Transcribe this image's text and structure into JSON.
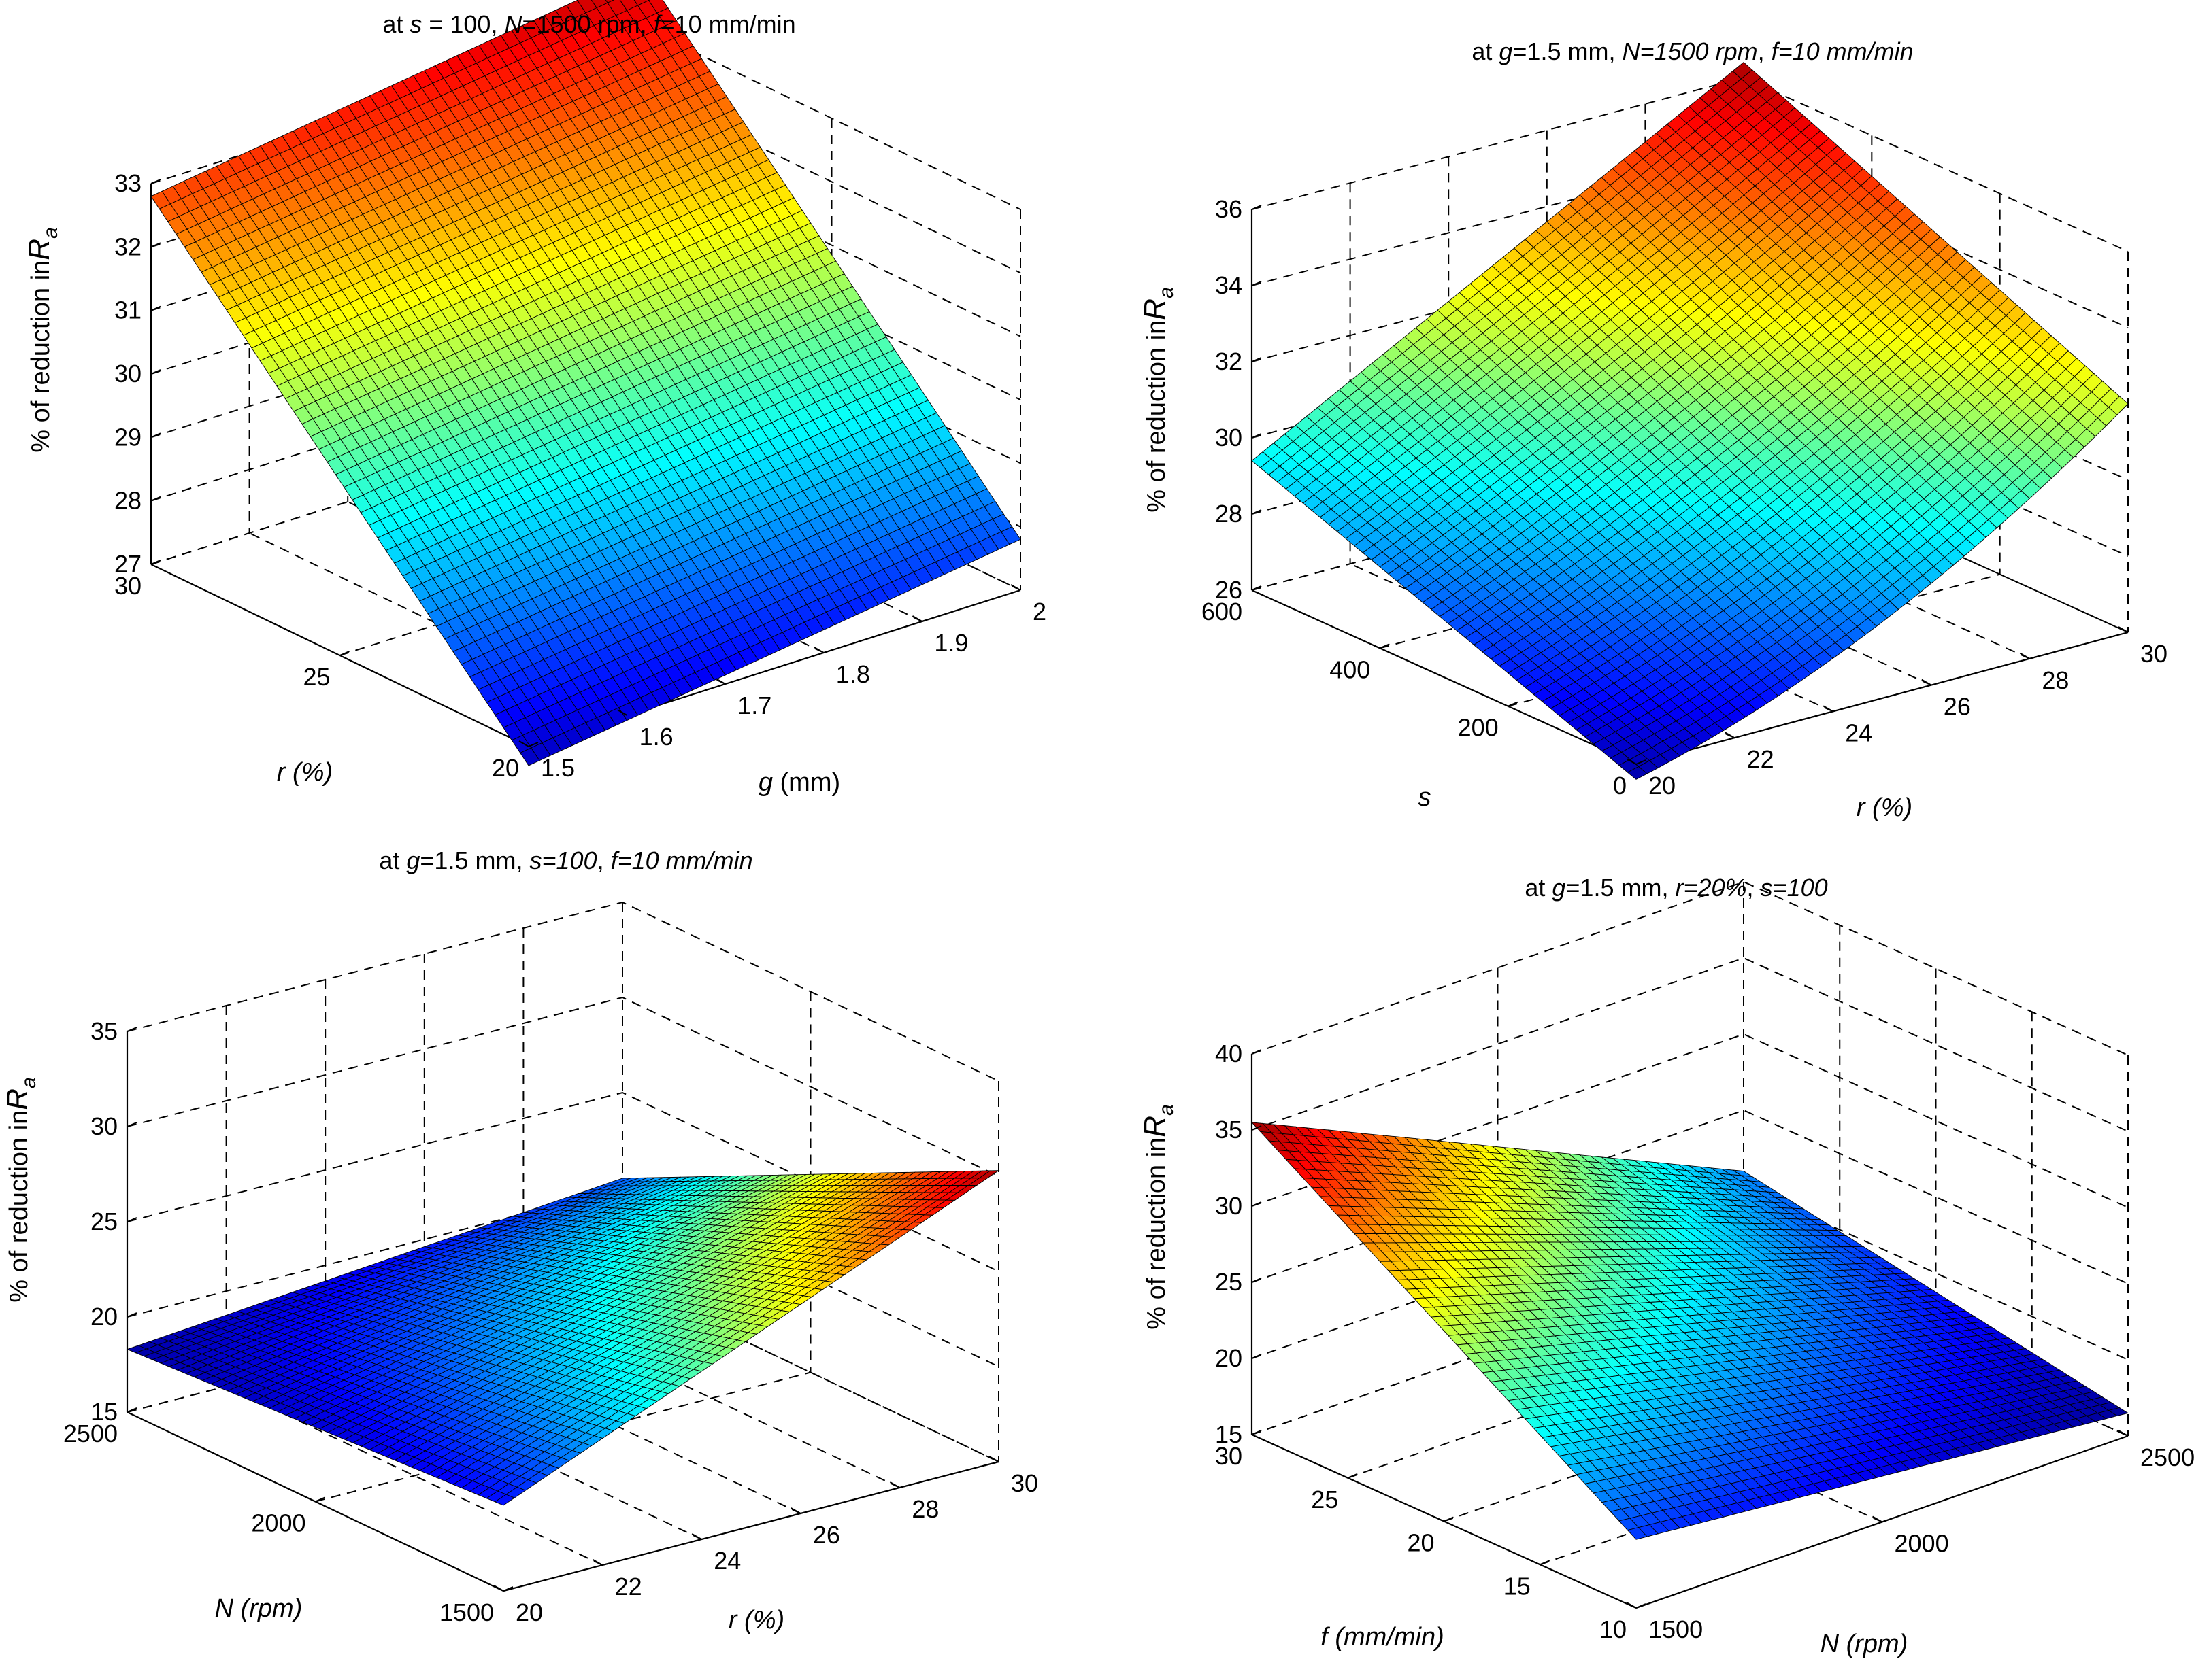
{
  "figure": {
    "background": "#ffffff",
    "line_color": "#000000",
    "mesh_color": "#000000"
  },
  "chart_data": [
    {
      "type": "surface",
      "title": [
        {
          "t": "at ",
          "i": false
        },
        {
          "t": "s",
          "i": true
        },
        {
          "t": " = 100, ",
          "i": false
        },
        {
          "t": "N",
          "i": true
        },
        {
          "t": "=1500 rpm, ",
          "i": false
        },
        {
          "t": "f",
          "i": true
        },
        {
          "t": "=10 mm/min",
          "i": false
        }
      ],
      "xlabel": [
        {
          "t": "r",
          "i": true
        },
        {
          "t": " (%)",
          "i": true
        }
      ],
      "ylabel": [
        {
          "t": "g",
          "i": true
        },
        {
          "t": " (mm)",
          "i": false
        }
      ],
      "zlabel": "% of reduction in",
      "zlabel_var": "R",
      "zlabel_sub": "a",
      "x_range": [
        20,
        30
      ],
      "y_range": [
        1.5,
        2.0
      ],
      "z_range": [
        27,
        33
      ],
      "x_ticks": [
        "30",
        "25",
        "20"
      ],
      "x_tick_values": [
        30,
        25,
        20
      ],
      "y_ticks": [
        "1.5",
        "1.6",
        "1.7",
        "1.8",
        "1.9",
        "2"
      ],
      "y_tick_values": [
        1.5,
        1.6,
        1.7,
        1.8,
        1.9,
        2.0
      ],
      "z_ticks": [
        "27",
        "28",
        "29",
        "30",
        "31",
        "32",
        "33"
      ],
      "z_tick_values": [
        27,
        28,
        29,
        30,
        31,
        32,
        33
      ],
      "grid": true,
      "corners": {
        "r20_g1.5": 26.7,
        "r20_g2": 27.8,
        "r30_g1.5": 32.8,
        "r30_g2": 33.9
      },
      "curvature": 0.0,
      "colormap": "jet"
    },
    {
      "type": "surface",
      "title": [
        {
          "t": "at ",
          "i": false
        },
        {
          "t": "g",
          "i": true
        },
        {
          "t": "=1.5 mm, ",
          "i": false
        },
        {
          "t": "N=1500 rpm",
          "i": true
        },
        {
          "t": ", ",
          "i": false
        },
        {
          "t": "f=10 mm/min",
          "i": true
        }
      ],
      "xlabel": [
        {
          "t": "s",
          "i": true
        }
      ],
      "ylabel": [
        {
          "t": "r (%)",
          "i": true
        }
      ],
      "zlabel": "% of reduction in",
      "zlabel_var": "R",
      "zlabel_sub": "a",
      "x_range": [
        0,
        600
      ],
      "y_range": [
        20,
        30
      ],
      "z_range": [
        26,
        36
      ],
      "x_ticks": [
        "600",
        "400",
        "200",
        "0"
      ],
      "x_tick_values": [
        600,
        400,
        200,
        0
      ],
      "y_ticks": [
        "20",
        "22",
        "24",
        "26",
        "28",
        "30"
      ],
      "y_tick_values": [
        20,
        22,
        24,
        26,
        28,
        30
      ],
      "z_ticks": [
        "26",
        "28",
        "30",
        "32",
        "34",
        "36"
      ],
      "z_tick_values": [
        26,
        28,
        30,
        32,
        34,
        36
      ],
      "grid": true,
      "corners": {
        "s0_r20": 25.6,
        "s0_r30": 32.0,
        "s600_r20": 29.4,
        "s600_r30": 36.4
      },
      "curvature": -0.8,
      "colormap": "jet"
    },
    {
      "type": "surface",
      "title": [
        {
          "t": "at ",
          "i": false
        },
        {
          "t": "g",
          "i": true
        },
        {
          "t": "=1.5 mm, ",
          "i": false
        },
        {
          "t": "s=100",
          "i": true
        },
        {
          "t": ", ",
          "i": false
        },
        {
          "t": "f=10 mm/min",
          "i": true
        }
      ],
      "xlabel": [
        {
          "t": "N (rpm)",
          "i": true
        }
      ],
      "ylabel": [
        {
          "t": "r (%)",
          "i": true
        }
      ],
      "zlabel": "% of reduction in",
      "zlabel_var": "R",
      "zlabel_sub": "a",
      "x_range": [
        1500,
        2500
      ],
      "y_range": [
        20,
        30
      ],
      "z_range": [
        15,
        35
      ],
      "x_ticks": [
        "2500",
        "2000",
        "1500"
      ],
      "x_tick_values": [
        2500,
        2000,
        1500
      ],
      "y_ticks": [
        "20",
        "22",
        "24",
        "26",
        "28",
        "30"
      ],
      "y_tick_values": [
        20,
        22,
        24,
        26,
        28,
        30
      ],
      "z_ticks": [
        "15",
        "20",
        "25",
        "30",
        "35"
      ],
      "z_tick_values": [
        15,
        20,
        25,
        30,
        35
      ],
      "grid": true,
      "corners": {
        "N1500_r20": 19.5,
        "N1500_r30": 30.3,
        "N2500_r20": 18.3,
        "N2500_r30": 20.5
      },
      "curvature": 0.0,
      "colormap": "jet"
    },
    {
      "type": "surface",
      "title": [
        {
          "t": "at ",
          "i": false
        },
        {
          "t": "g",
          "i": true
        },
        {
          "t": "=1.5 mm, ",
          "i": false
        },
        {
          "t": "r=20%",
          "i": true
        },
        {
          "t": ", ",
          "i": false
        },
        {
          "t": "s=100",
          "i": true
        }
      ],
      "xlabel": [
        {
          "t": "f (mm/min)",
          "i": true
        }
      ],
      "ylabel": [
        {
          "t": "N (rpm)",
          "i": true
        }
      ],
      "zlabel": "% of reduction in",
      "zlabel_var": "R",
      "zlabel_sub": "a",
      "x_range": [
        10,
        30
      ],
      "y_range": [
        1500,
        2500
      ],
      "z_range": [
        15,
        40
      ],
      "x_ticks": [
        "30",
        "25",
        "20",
        "15",
        "10"
      ],
      "x_tick_values": [
        30,
        25,
        20,
        15,
        10
      ],
      "y_ticks": [
        "1500",
        "2000",
        "2500"
      ],
      "y_tick_values": [
        1500,
        2000,
        2500
      ],
      "z_ticks": [
        "15",
        "20",
        "25",
        "30",
        "35",
        "40"
      ],
      "z_tick_values": [
        15,
        20,
        25,
        30,
        35,
        40
      ],
      "grid": true,
      "corners": {
        "f10_N1500": 19.5,
        "f10_N2500": 16.5,
        "f30_N1500": 35.5,
        "f30_N2500": 21.0
      },
      "curvature": 0.0,
      "colormap": "jet"
    }
  ]
}
